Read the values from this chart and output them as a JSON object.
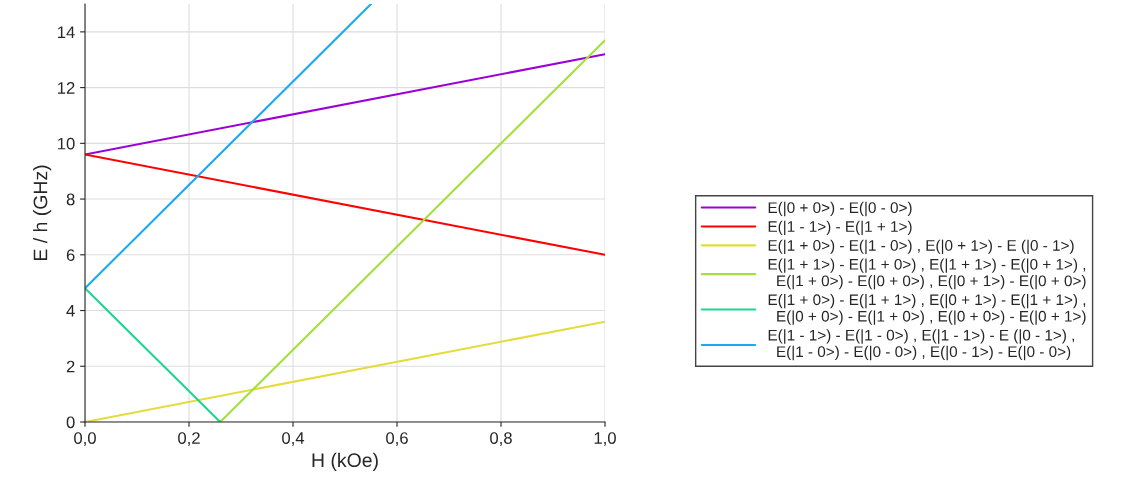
{
  "chart_data": {
    "type": "line",
    "xlabel": "H (kOe)",
    "ylabel": "E / h (GHz)",
    "xlim": [
      0,
      1
    ],
    "ylim": [
      0,
      15
    ],
    "xticks": [
      {
        "value": 0,
        "label": "0,0"
      },
      {
        "value": 0.2,
        "label": "0,2"
      },
      {
        "value": 0.4,
        "label": "0,4"
      },
      {
        "value": 0.6,
        "label": "0,6"
      },
      {
        "value": 0.8,
        "label": "0,8"
      },
      {
        "value": 1,
        "label": "1,0"
      }
    ],
    "yticks": [
      0,
      2,
      4,
      6,
      8,
      10,
      12,
      14
    ],
    "grid": true,
    "legend": "right",
    "marker": "none",
    "line_style": "solid",
    "series": [
      {
        "name": "E(|0 + 0>) - E(|0 - 0>)",
        "color": "#9b00d6",
        "x": [
          0,
          1
        ],
        "values": [
          9.6,
          13.2
        ]
      },
      {
        "name": "E(|1 - 1>) - E(|1 + 1>)",
        "color": "#ff0000",
        "x": [
          0,
          1
        ],
        "values": [
          9.6,
          6.0
        ]
      },
      {
        "name": "E(|1 + 0>) - E(|1 - 0>) , E(|0 + 1>) - E (|0 - 1>)",
        "color": "#e3dc3c",
        "x": [
          0,
          1
        ],
        "values": [
          0,
          3.6
        ]
      },
      {
        "name": "E(|1 + 1>) - E(|1 + 0>) , E(|1 + 1>) - E(|0 + 1>) ,\n  E(|1 + 0>) - E(|0 + 0>) , E(|0 + 1>) - E(|0 + 0>)",
        "color": "#a3e03e",
        "x": [
          0.26,
          1
        ],
        "values": [
          0,
          13.7
        ]
      },
      {
        "name": "E(|1 + 0>) - E(|1 + 1>) , E(|0 + 1>) - E(|1 + 1>) ,\n  E(|0 + 0>) - E(|1 + 0>) , E(|0 + 0>) - E(|0 + 1>)",
        "color": "#1fd58f",
        "x": [
          0,
          0.26
        ],
        "values": [
          4.8,
          0
        ]
      },
      {
        "name": "E(|1 - 1>) - E(|1 - 0>) , E(|1 - 1>) - E (|0 - 1>) ,\n  E(|1 - 0>) - E(|0 - 0>) , E(|0 - 1>) - E(|0 - 0>)",
        "color": "#1aa9f2",
        "x": [
          0,
          0.55
        ],
        "values": [
          4.8,
          15
        ]
      }
    ]
  }
}
